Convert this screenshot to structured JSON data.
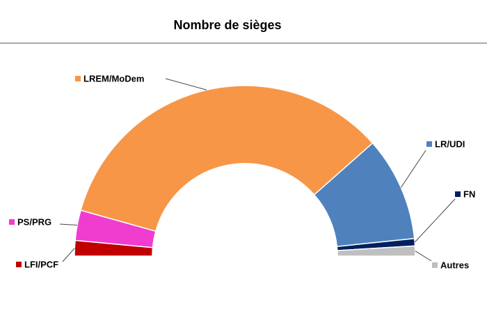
{
  "chart_data": {
    "type": "half-donut",
    "title": "Nombre de sièges",
    "categories": [
      "LFI/PCF",
      "PS/PRG",
      "LREM/MoDem",
      "LR/UDI",
      "FN",
      "Autres"
    ],
    "values": [
      17,
      33,
      394,
      114,
      8,
      11
    ],
    "colors": [
      "#c00000",
      "#f03ccf",
      "#f79646",
      "#4f81bd",
      "#002060",
      "#bfbfbf"
    ]
  }
}
